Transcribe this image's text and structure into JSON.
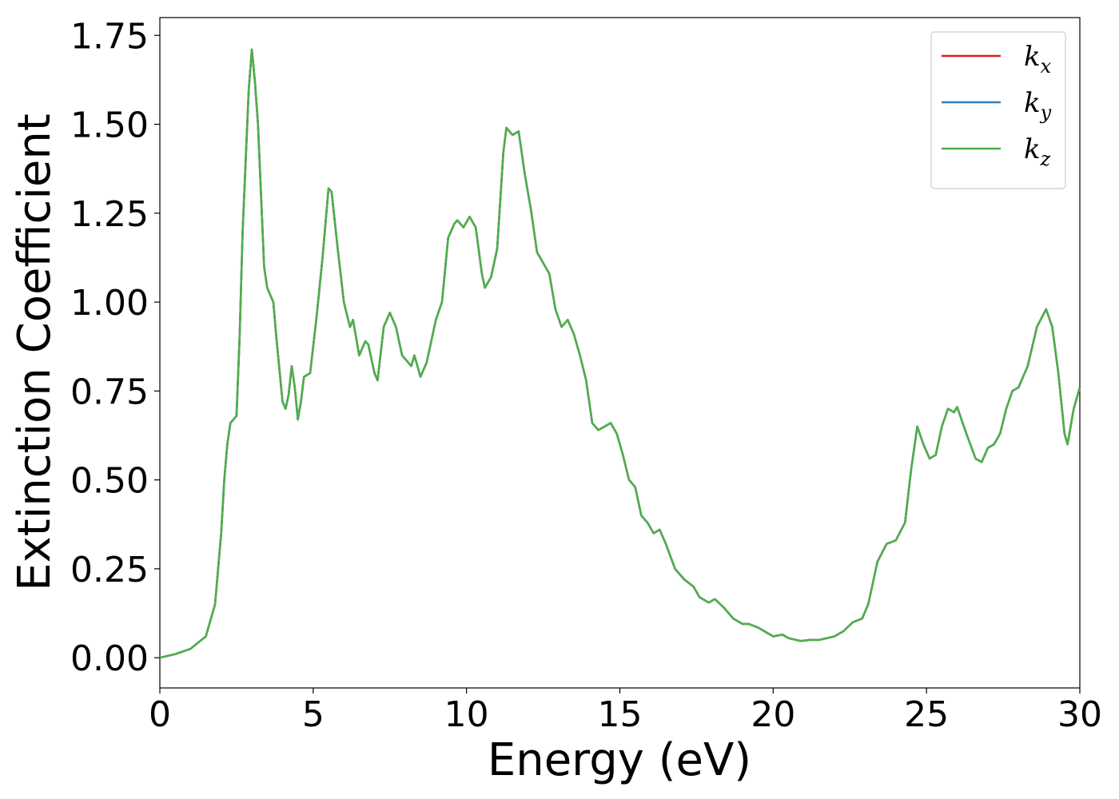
{
  "chart_data": {
    "type": "line",
    "xlabel": "Energy (eV)",
    "ylabel": "Extinction Coefficient",
    "xlim": [
      0,
      30
    ],
    "ylim": [
      -0.085,
      1.8
    ],
    "xticks": [
      0,
      5,
      10,
      15,
      20,
      25,
      30
    ],
    "yticks": [
      {
        "value": 0,
        "label": "0.00"
      },
      {
        "value": 0.25,
        "label": "0.25"
      },
      {
        "value": 0.5,
        "label": "0.50"
      },
      {
        "value": 0.75,
        "label": "0.75"
      },
      {
        "value": 1.0,
        "label": "1.00"
      },
      {
        "value": 1.25,
        "label": "1.25"
      },
      {
        "value": 1.5,
        "label": "1.50"
      },
      {
        "value": 1.75,
        "label": "1.75"
      }
    ],
    "legend": "upper right",
    "x": [
      0,
      0.5,
      1.0,
      1.5,
      1.8,
      2.0,
      2.1,
      2.2,
      2.3,
      2.5,
      2.6,
      2.7,
      2.8,
      2.9,
      3.0,
      3.1,
      3.2,
      3.3,
      3.4,
      3.5,
      3.7,
      3.8,
      4.0,
      4.1,
      4.2,
      4.3,
      4.4,
      4.5,
      4.6,
      4.7,
      4.9,
      5.1,
      5.3,
      5.5,
      5.6,
      5.8,
      6.0,
      6.2,
      6.3,
      6.5,
      6.7,
      6.8,
      7.0,
      7.1,
      7.3,
      7.5,
      7.7,
      7.9,
      8.2,
      8.3,
      8.5,
      8.7,
      9.0,
      9.2,
      9.4,
      9.6,
      9.7,
      9.9,
      10.1,
      10.3,
      10.5,
      10.6,
      10.8,
      11.0,
      11.2,
      11.3,
      11.5,
      11.7,
      11.9,
      12.1,
      12.3,
      12.5,
      12.7,
      12.9,
      13.1,
      13.3,
      13.5,
      13.7,
      13.9,
      14.1,
      14.3,
      14.5,
      14.7,
      14.9,
      15.1,
      15.3,
      15.5,
      15.7,
      15.9,
      16.1,
      16.3,
      16.5,
      16.8,
      17.1,
      17.4,
      17.6,
      17.9,
      18.1,
      18.4,
      18.7,
      19.0,
      19.2,
      19.5,
      19.8,
      20.0,
      20.3,
      20.5,
      20.9,
      21.2,
      21.5,
      22.0,
      22.3,
      22.6,
      22.9,
      23.1,
      23.4,
      23.7,
      24.0,
      24.3,
      24.5,
      24.7,
      24.9,
      25.1,
      25.3,
      25.5,
      25.7,
      25.9,
      26.0,
      26.3,
      26.6,
      26.8,
      27.0,
      27.2,
      27.4,
      27.6,
      27.8,
      28.0,
      28.3,
      28.6,
      28.9,
      29.1,
      29.3,
      29.5,
      29.6,
      29.8,
      30.0
    ],
    "series": [
      {
        "name": "kx",
        "color": "#e41a1c",
        "values": [
          0.0,
          0.01,
          0.025,
          0.06,
          0.15,
          0.35,
          0.5,
          0.6,
          0.66,
          0.68,
          0.9,
          1.2,
          1.4,
          1.6,
          1.71,
          1.62,
          1.5,
          1.3,
          1.1,
          1.04,
          1.0,
          0.9,
          0.72,
          0.7,
          0.74,
          0.82,
          0.76,
          0.67,
          0.72,
          0.79,
          0.8,
          0.95,
          1.12,
          1.32,
          1.31,
          1.15,
          1.0,
          0.93,
          0.95,
          0.85,
          0.89,
          0.88,
          0.8,
          0.78,
          0.93,
          0.97,
          0.93,
          0.85,
          0.82,
          0.85,
          0.79,
          0.83,
          0.95,
          1.0,
          1.18,
          1.22,
          1.23,
          1.21,
          1.24,
          1.21,
          1.08,
          1.04,
          1.07,
          1.15,
          1.42,
          1.49,
          1.47,
          1.48,
          1.36,
          1.26,
          1.14,
          1.11,
          1.08,
          0.98,
          0.93,
          0.95,
          0.91,
          0.85,
          0.78,
          0.66,
          0.64,
          0.65,
          0.66,
          0.63,
          0.57,
          0.5,
          0.48,
          0.4,
          0.38,
          0.35,
          0.36,
          0.32,
          0.25,
          0.22,
          0.2,
          0.17,
          0.155,
          0.165,
          0.14,
          0.11,
          0.095,
          0.095,
          0.085,
          0.07,
          0.06,
          0.065,
          0.055,
          0.047,
          0.05,
          0.05,
          0.06,
          0.075,
          0.1,
          0.11,
          0.15,
          0.27,
          0.32,
          0.33,
          0.38,
          0.53,
          0.65,
          0.6,
          0.56,
          0.57,
          0.65,
          0.7,
          0.69,
          0.705,
          0.63,
          0.56,
          0.55,
          0.59,
          0.6,
          0.63,
          0.7,
          0.75,
          0.76,
          0.82,
          0.93,
          0.98,
          0.93,
          0.8,
          0.63,
          0.6,
          0.7,
          0.76
        ]
      },
      {
        "name": "ky",
        "color": "#377eb8",
        "values": [
          0.0,
          0.01,
          0.025,
          0.06,
          0.15,
          0.35,
          0.5,
          0.6,
          0.66,
          0.68,
          0.9,
          1.2,
          1.4,
          1.6,
          1.71,
          1.62,
          1.5,
          1.3,
          1.1,
          1.04,
          1.0,
          0.9,
          0.72,
          0.7,
          0.74,
          0.82,
          0.76,
          0.67,
          0.72,
          0.79,
          0.8,
          0.95,
          1.12,
          1.32,
          1.31,
          1.15,
          1.0,
          0.93,
          0.95,
          0.85,
          0.89,
          0.88,
          0.8,
          0.78,
          0.93,
          0.97,
          0.93,
          0.85,
          0.82,
          0.85,
          0.79,
          0.83,
          0.95,
          1.0,
          1.18,
          1.22,
          1.23,
          1.21,
          1.24,
          1.21,
          1.08,
          1.04,
          1.07,
          1.15,
          1.42,
          1.49,
          1.47,
          1.48,
          1.36,
          1.26,
          1.14,
          1.11,
          1.08,
          0.98,
          0.93,
          0.95,
          0.91,
          0.85,
          0.78,
          0.66,
          0.64,
          0.65,
          0.66,
          0.63,
          0.57,
          0.5,
          0.48,
          0.4,
          0.38,
          0.35,
          0.36,
          0.32,
          0.25,
          0.22,
          0.2,
          0.17,
          0.155,
          0.165,
          0.14,
          0.11,
          0.095,
          0.095,
          0.085,
          0.07,
          0.06,
          0.065,
          0.055,
          0.047,
          0.05,
          0.05,
          0.06,
          0.075,
          0.1,
          0.11,
          0.15,
          0.27,
          0.32,
          0.33,
          0.38,
          0.53,
          0.65,
          0.6,
          0.56,
          0.57,
          0.65,
          0.7,
          0.69,
          0.705,
          0.63,
          0.56,
          0.55,
          0.59,
          0.6,
          0.63,
          0.7,
          0.75,
          0.76,
          0.82,
          0.93,
          0.98,
          0.93,
          0.8,
          0.63,
          0.6,
          0.7,
          0.76
        ]
      },
      {
        "name": "kz",
        "color": "#4daf4a",
        "values": [
          0.0,
          0.01,
          0.025,
          0.06,
          0.15,
          0.35,
          0.5,
          0.6,
          0.66,
          0.68,
          0.9,
          1.2,
          1.4,
          1.6,
          1.71,
          1.62,
          1.5,
          1.3,
          1.1,
          1.04,
          1.0,
          0.9,
          0.72,
          0.7,
          0.74,
          0.82,
          0.76,
          0.67,
          0.72,
          0.79,
          0.8,
          0.95,
          1.12,
          1.32,
          1.31,
          1.15,
          1.0,
          0.93,
          0.95,
          0.85,
          0.89,
          0.88,
          0.8,
          0.78,
          0.93,
          0.97,
          0.93,
          0.85,
          0.82,
          0.85,
          0.79,
          0.83,
          0.95,
          1.0,
          1.18,
          1.22,
          1.23,
          1.21,
          1.24,
          1.21,
          1.08,
          1.04,
          1.07,
          1.15,
          1.42,
          1.49,
          1.47,
          1.48,
          1.36,
          1.26,
          1.14,
          1.11,
          1.08,
          0.98,
          0.93,
          0.95,
          0.91,
          0.85,
          0.78,
          0.66,
          0.64,
          0.65,
          0.66,
          0.63,
          0.57,
          0.5,
          0.48,
          0.4,
          0.38,
          0.35,
          0.36,
          0.32,
          0.25,
          0.22,
          0.2,
          0.17,
          0.155,
          0.165,
          0.14,
          0.11,
          0.095,
          0.095,
          0.085,
          0.07,
          0.06,
          0.065,
          0.055,
          0.047,
          0.05,
          0.05,
          0.06,
          0.075,
          0.1,
          0.11,
          0.15,
          0.27,
          0.32,
          0.33,
          0.38,
          0.53,
          0.65,
          0.6,
          0.56,
          0.57,
          0.65,
          0.7,
          0.69,
          0.705,
          0.63,
          0.56,
          0.55,
          0.59,
          0.6,
          0.63,
          0.7,
          0.75,
          0.76,
          0.82,
          0.93,
          0.98,
          0.93,
          0.8,
          0.63,
          0.6,
          0.7,
          0.76
        ]
      }
    ]
  }
}
